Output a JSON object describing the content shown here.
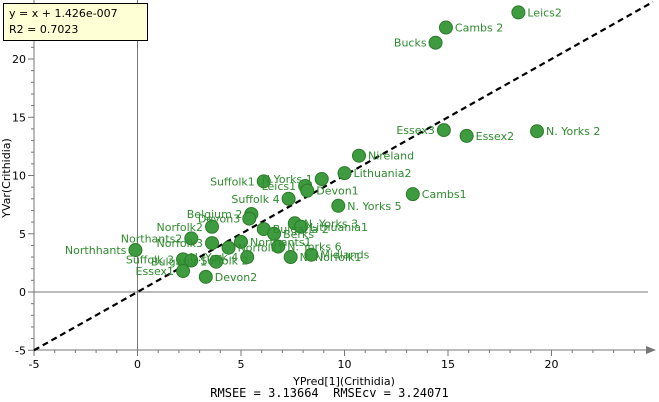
{
  "chart_data": {
    "type": "scatter",
    "xlabel": "YPred[1](Crithidia)",
    "ylabel": "YVar(Crithidia)",
    "xlim": [
      -5,
      25
    ],
    "ylim": [
      -5,
      25
    ],
    "x_ticks": [
      -5,
      0,
      5,
      10,
      15,
      20
    ],
    "y_ticks": [
      -5,
      0,
      5,
      10,
      15,
      20
    ],
    "grid": false,
    "regression_line": {
      "equation": "y = x + 1.426e-007",
      "r2": "R2 = 0.7023",
      "slope": 1,
      "intercept": 0
    },
    "stats_text": "RMSEE = 3.13664  RMSEcv = 3.24071",
    "point_color": "#3f9b3f",
    "label_color": "#2e8b2e",
    "points": [
      {
        "label": "Leics2",
        "x": 18.4,
        "y": 24.0
      },
      {
        "label": "Cambs 2",
        "x": 14.9,
        "y": 22.7
      },
      {
        "label": "Bucks",
        "x": 14.4,
        "y": 21.4
      },
      {
        "label": "N. Yorks 2",
        "x": 19.3,
        "y": 13.8
      },
      {
        "label": "Essex3",
        "x": 14.8,
        "y": 13.9
      },
      {
        "label": "Essex2",
        "x": 15.9,
        "y": 13.4
      },
      {
        "label": "Nireland",
        "x": 10.7,
        "y": 11.7
      },
      {
        "label": "Lithuania2",
        "x": 10.0,
        "y": 10.2
      },
      {
        "label": "N.Yorks 1",
        "x": 8.9,
        "y": 9.7
      },
      {
        "label": "Leics1",
        "x": 8.1,
        "y": 9.1
      },
      {
        "label": "Suffolk1",
        "x": 6.1,
        "y": 9.5
      },
      {
        "label": "Cambs1",
        "x": 13.3,
        "y": 8.4
      },
      {
        "label": "Devon1",
        "x": 8.2,
        "y": 8.7
      },
      {
        "label": "N. Yorks 5",
        "x": 9.7,
        "y": 7.4
      },
      {
        "label": "Suffolk 4",
        "x": 7.3,
        "y": 8.0
      },
      {
        "label": "Belgium 2",
        "x": 5.5,
        "y": 6.7
      },
      {
        "label": "Devon3",
        "x": 5.4,
        "y": 6.3
      },
      {
        "label": "N. Yorks 3",
        "x": 7.6,
        "y": 5.9
      },
      {
        "label": "Lithuania1",
        "x": 7.9,
        "y": 5.6
      },
      {
        "label": "Bulgaria 2",
        "x": 6.1,
        "y": 5.4
      },
      {
        "label": "Berks",
        "x": 6.6,
        "y": 5.0
      },
      {
        "label": "Norfolk2",
        "x": 3.6,
        "y": 5.6
      },
      {
        "label": "Northants2",
        "x": 2.6,
        "y": 4.6
      },
      {
        "label": "Norfolk3",
        "x": 3.6,
        "y": 4.2
      },
      {
        "label": "Norfolk1",
        "x": 4.4,
        "y": 3.8
      },
      {
        "label": "Northants1",
        "x": 5.0,
        "y": 4.3
      },
      {
        "label": "N. Yorks 6",
        "x": 6.8,
        "y": 3.9
      },
      {
        "label": "Northhants",
        "x": -0.1,
        "y": 3.6
      },
      {
        "label": "Midlands",
        "x": 8.4,
        "y": 3.2
      },
      {
        "label": "Suffolk 3",
        "x": 2.2,
        "y": 2.8
      },
      {
        "label": "Suffolk 2",
        "x": 2.6,
        "y": 2.7
      },
      {
        "label": "Bulgaria 1",
        "x": 3.8,
        "y": 2.6
      },
      {
        "label": "N. Norfolk1",
        "x": 7.4,
        "y": 3.0
      },
      {
        "label": "N. York 4",
        "x": 5.3,
        "y": 3.0
      },
      {
        "label": "Essex1",
        "x": 2.2,
        "y": 1.8
      },
      {
        "label": "Devon2",
        "x": 3.3,
        "y": 1.3
      }
    ]
  }
}
